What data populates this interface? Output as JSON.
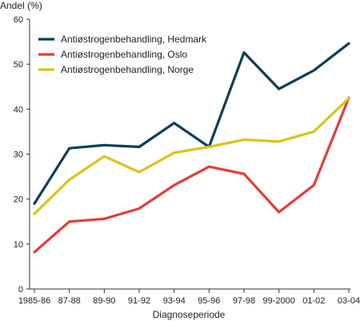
{
  "chart_data": {
    "type": "line",
    "ylabel": "Andel (%)",
    "xlabel": "Diagnoseperiode",
    "ylim": [
      0,
      60
    ],
    "yticks": [
      0,
      10,
      20,
      30,
      40,
      50,
      60
    ],
    "grid": false,
    "legend_position": "top-left",
    "categories": [
      "1985-86",
      "87-88",
      "89-90",
      "91-92",
      "93-94",
      "95-96",
      "97-98",
      "99-2000",
      "01-02",
      "03-04"
    ],
    "series": [
      {
        "name": "Antiøstrogenbehandling, Hedmark",
        "color": "#0f3d55",
        "values": [
          19,
          31.3,
          32,
          31.6,
          36.9,
          31.6,
          52.6,
          44.5,
          48.6,
          54.6
        ]
      },
      {
        "name": "Antiøstrogenbehandling, Oslo",
        "color": "#e63b3b",
        "values": [
          8.2,
          15,
          15.6,
          17.9,
          23.1,
          27.2,
          25.6,
          17.1,
          23.1,
          42.5
        ]
      },
      {
        "name": "Antiøstrogenbehandling, Norge",
        "color": "#d9c41a",
        "values": [
          16.7,
          24.3,
          29.5,
          26,
          30.3,
          31.6,
          33.2,
          32.8,
          35,
          42.4
        ]
      }
    ]
  }
}
